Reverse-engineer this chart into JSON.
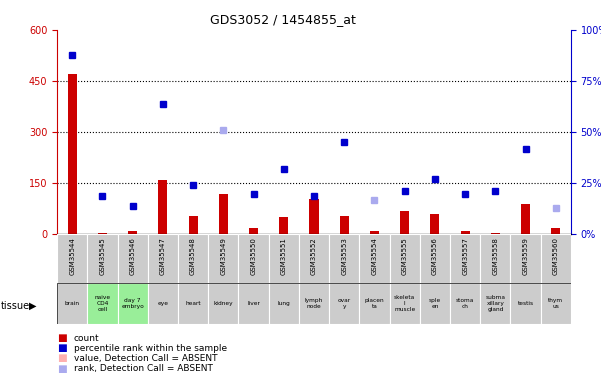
{
  "title": "GDS3052 / 1454855_at",
  "samples": [
    "GSM35544",
    "GSM35545",
    "GSM35546",
    "GSM35547",
    "GSM35548",
    "GSM35549",
    "GSM35550",
    "GSM35551",
    "GSM35552",
    "GSM35553",
    "GSM35554",
    "GSM35555",
    "GSM35556",
    "GSM35557",
    "GSM35558",
    "GSM35559",
    "GSM35560"
  ],
  "tissues": [
    "brain",
    "naive\nCD4\ncell",
    "day 7\nembryо",
    "eye",
    "heart",
    "kidney",
    "liver",
    "lung",
    "lymph\nnode",
    "ovar\ny",
    "placen\nta",
    "skeleta\nl\nmuscle",
    "sple\nen",
    "stoma\nch",
    "subma\nxillary\ngland",
    "testis",
    "thym\nus"
  ],
  "tissue_green": [
    false,
    true,
    true,
    false,
    false,
    false,
    false,
    false,
    false,
    false,
    false,
    false,
    false,
    false,
    false,
    false,
    false
  ],
  "count_values": [
    470,
    5,
    10,
    160,
    55,
    120,
    20,
    50,
    105,
    55,
    10,
    70,
    60,
    10,
    5,
    90,
    20
  ],
  "count_absent": [
    false,
    false,
    false,
    false,
    false,
    false,
    false,
    false,
    false,
    false,
    false,
    false,
    false,
    false,
    false,
    false,
    false
  ],
  "rank_values": [
    88,
    19,
    14,
    64,
    24,
    51,
    20,
    32,
    19,
    45,
    17,
    21,
    27,
    20,
    21,
    42,
    13
  ],
  "rank_absent": [
    false,
    false,
    false,
    false,
    false,
    true,
    false,
    false,
    false,
    false,
    true,
    false,
    false,
    false,
    false,
    false,
    true
  ],
  "ylim_left": [
    0,
    600
  ],
  "ylim_right": [
    0,
    100
  ],
  "yticks_left": [
    0,
    150,
    300,
    450,
    600
  ],
  "yticks_right": [
    0,
    25,
    50,
    75,
    100
  ],
  "bar_color": "#cc0000",
  "bar_absent_color": "#ffb0b0",
  "rank_color": "#0000cc",
  "rank_absent_color": "#aaaaee",
  "xlabel_color": "#cc0000",
  "ylabel_right_color": "#0000cc",
  "sample_bg_color": "#cccccc",
  "tissue_bg_normal": "#cccccc",
  "tissue_bg_green": "#99ee99"
}
